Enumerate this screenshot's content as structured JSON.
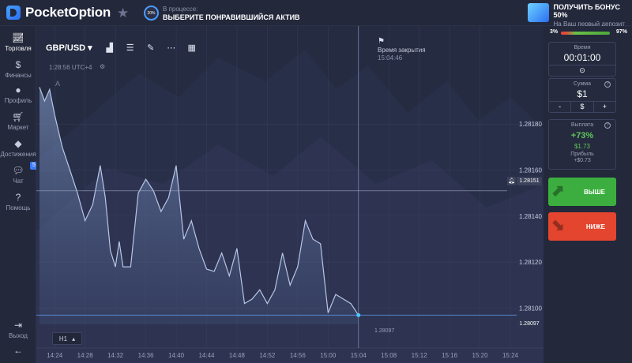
{
  "topbar": {
    "logo_text": "PocketOption",
    "progress_pct": "20%",
    "progress_label": "В процессе:",
    "progress_task": "ВЫБЕРИТЕ ПОНРАВИВШИЙСЯ АКТИВ",
    "bonus_title": "ПОЛУЧИТЬ БОНУС 50%",
    "bonus_sub": "На Ваш первый депозит"
  },
  "sidebar": {
    "items": [
      {
        "label": "Торговля",
        "icon": "chart-line-icon"
      },
      {
        "label": "Финансы",
        "icon": "dollar-icon"
      },
      {
        "label": "Профиль",
        "icon": "user-icon"
      },
      {
        "label": "Маркет",
        "icon": "cart-icon"
      },
      {
        "label": "Достижения",
        "icon": "diamond-icon"
      },
      {
        "label": "Чат",
        "icon": "chat-icon"
      },
      {
        "label": "Помощь",
        "icon": "help-icon"
      }
    ],
    "chat_badge": "5",
    "logout_label": "Выход"
  },
  "chart": {
    "pair": "GBP/USD",
    "clock": "1:28:56 UTC+4",
    "expiry_label": "Время закрытия",
    "expiry_time": "15:04:46",
    "timeframe": "H1",
    "label_a": "A",
    "below_price": "1.28097"
  },
  "chart_data": {
    "type": "area",
    "pair": "GBP/USD",
    "x_ticks": [
      "14:24",
      "14:28",
      "14:32",
      "14:36",
      "14:40",
      "14:44",
      "14:48",
      "14:52",
      "14:56",
      "15:00",
      "15:04",
      "15:08",
      "15:12",
      "15:16",
      "15:20",
      "15:24"
    ],
    "y_ticks": [
      "1.28180",
      "1.28160",
      "1.28140",
      "1.28120",
      "1.28100"
    ],
    "ylim": [
      1.28093,
      1.28202
    ],
    "xlim": [
      "14:22:00",
      "15:24:00"
    ],
    "expiry_line": "15:04:00",
    "current_price": "1.28097",
    "marker_price": "1.28151",
    "series": [
      {
        "x": "14:22:00",
        "y": 1.28196
      },
      {
        "x": "14:22:40",
        "y": 1.2819
      },
      {
        "x": "14:23:20",
        "y": 1.28195
      },
      {
        "x": "14:24:00",
        "y": 1.28184
      },
      {
        "x": "14:25:00",
        "y": 1.2817
      },
      {
        "x": "14:26:00",
        "y": 1.2816
      },
      {
        "x": "14:27:00",
        "y": 1.2815
      },
      {
        "x": "14:28:00",
        "y": 1.28138
      },
      {
        "x": "14:29:00",
        "y": 1.28145
      },
      {
        "x": "14:30:00",
        "y": 1.28162
      },
      {
        "x": "14:30:40",
        "y": 1.28148
      },
      {
        "x": "14:31:20",
        "y": 1.28125
      },
      {
        "x": "14:32:00",
        "y": 1.28118
      },
      {
        "x": "14:32:30",
        "y": 1.28129
      },
      {
        "x": "14:33:00",
        "y": 1.28118
      },
      {
        "x": "14:34:00",
        "y": 1.28118
      },
      {
        "x": "14:35:00",
        "y": 1.2815
      },
      {
        "x": "14:36:00",
        "y": 1.28156
      },
      {
        "x": "14:37:00",
        "y": 1.28151
      },
      {
        "x": "14:38:00",
        "y": 1.28142
      },
      {
        "x": "14:39:00",
        "y": 1.28148
      },
      {
        "x": "14:40:00",
        "y": 1.28162
      },
      {
        "x": "14:41:00",
        "y": 1.2813
      },
      {
        "x": "14:42:00",
        "y": 1.28138
      },
      {
        "x": "14:43:00",
        "y": 1.28126
      },
      {
        "x": "14:44:00",
        "y": 1.28117
      },
      {
        "x": "14:45:00",
        "y": 1.28116
      },
      {
        "x": "14:46:00",
        "y": 1.28124
      },
      {
        "x": "14:47:00",
        "y": 1.28114
      },
      {
        "x": "14:48:00",
        "y": 1.28126
      },
      {
        "x": "14:49:00",
        "y": 1.28102
      },
      {
        "x": "14:50:00",
        "y": 1.28104
      },
      {
        "x": "14:51:00",
        "y": 1.28108
      },
      {
        "x": "14:52:00",
        "y": 1.28102
      },
      {
        "x": "14:53:00",
        "y": 1.28108
      },
      {
        "x": "14:54:00",
        "y": 1.28124
      },
      {
        "x": "14:55:00",
        "y": 1.2811
      },
      {
        "x": "14:56:00",
        "y": 1.28118
      },
      {
        "x": "14:57:00",
        "y": 1.28138
      },
      {
        "x": "14:58:00",
        "y": 1.2813
      },
      {
        "x": "14:59:00",
        "y": 1.28128
      },
      {
        "x": "15:00:00",
        "y": 1.28098
      },
      {
        "x": "15:01:00",
        "y": 1.28106
      },
      {
        "x": "15:02:00",
        "y": 1.28104
      },
      {
        "x": "15:03:00",
        "y": 1.28102
      },
      {
        "x": "15:04:00",
        "y": 1.28097
      }
    ]
  },
  "panel": {
    "ratio_left": "3%",
    "ratio_right": "97%",
    "time_label": "Время",
    "time_value": "00:01:00",
    "amount_label": "Сумма",
    "amount_value": "$1",
    "minus": "-",
    "currency": "$",
    "plus": "+",
    "payout_label": "Выплата",
    "payout_pct": "+73%",
    "payout_amount": "$1.73",
    "profit_label": "Прибыль",
    "profit_value": "+$0.73",
    "buy_label": "ВЫШЕ",
    "sell_label": "НИЖЕ"
  },
  "colors": {
    "background": "#252b40",
    "accent": "#4b9bff",
    "buy": "#3cae3f",
    "sell": "#e4452f",
    "payout": "#5fc65a"
  }
}
